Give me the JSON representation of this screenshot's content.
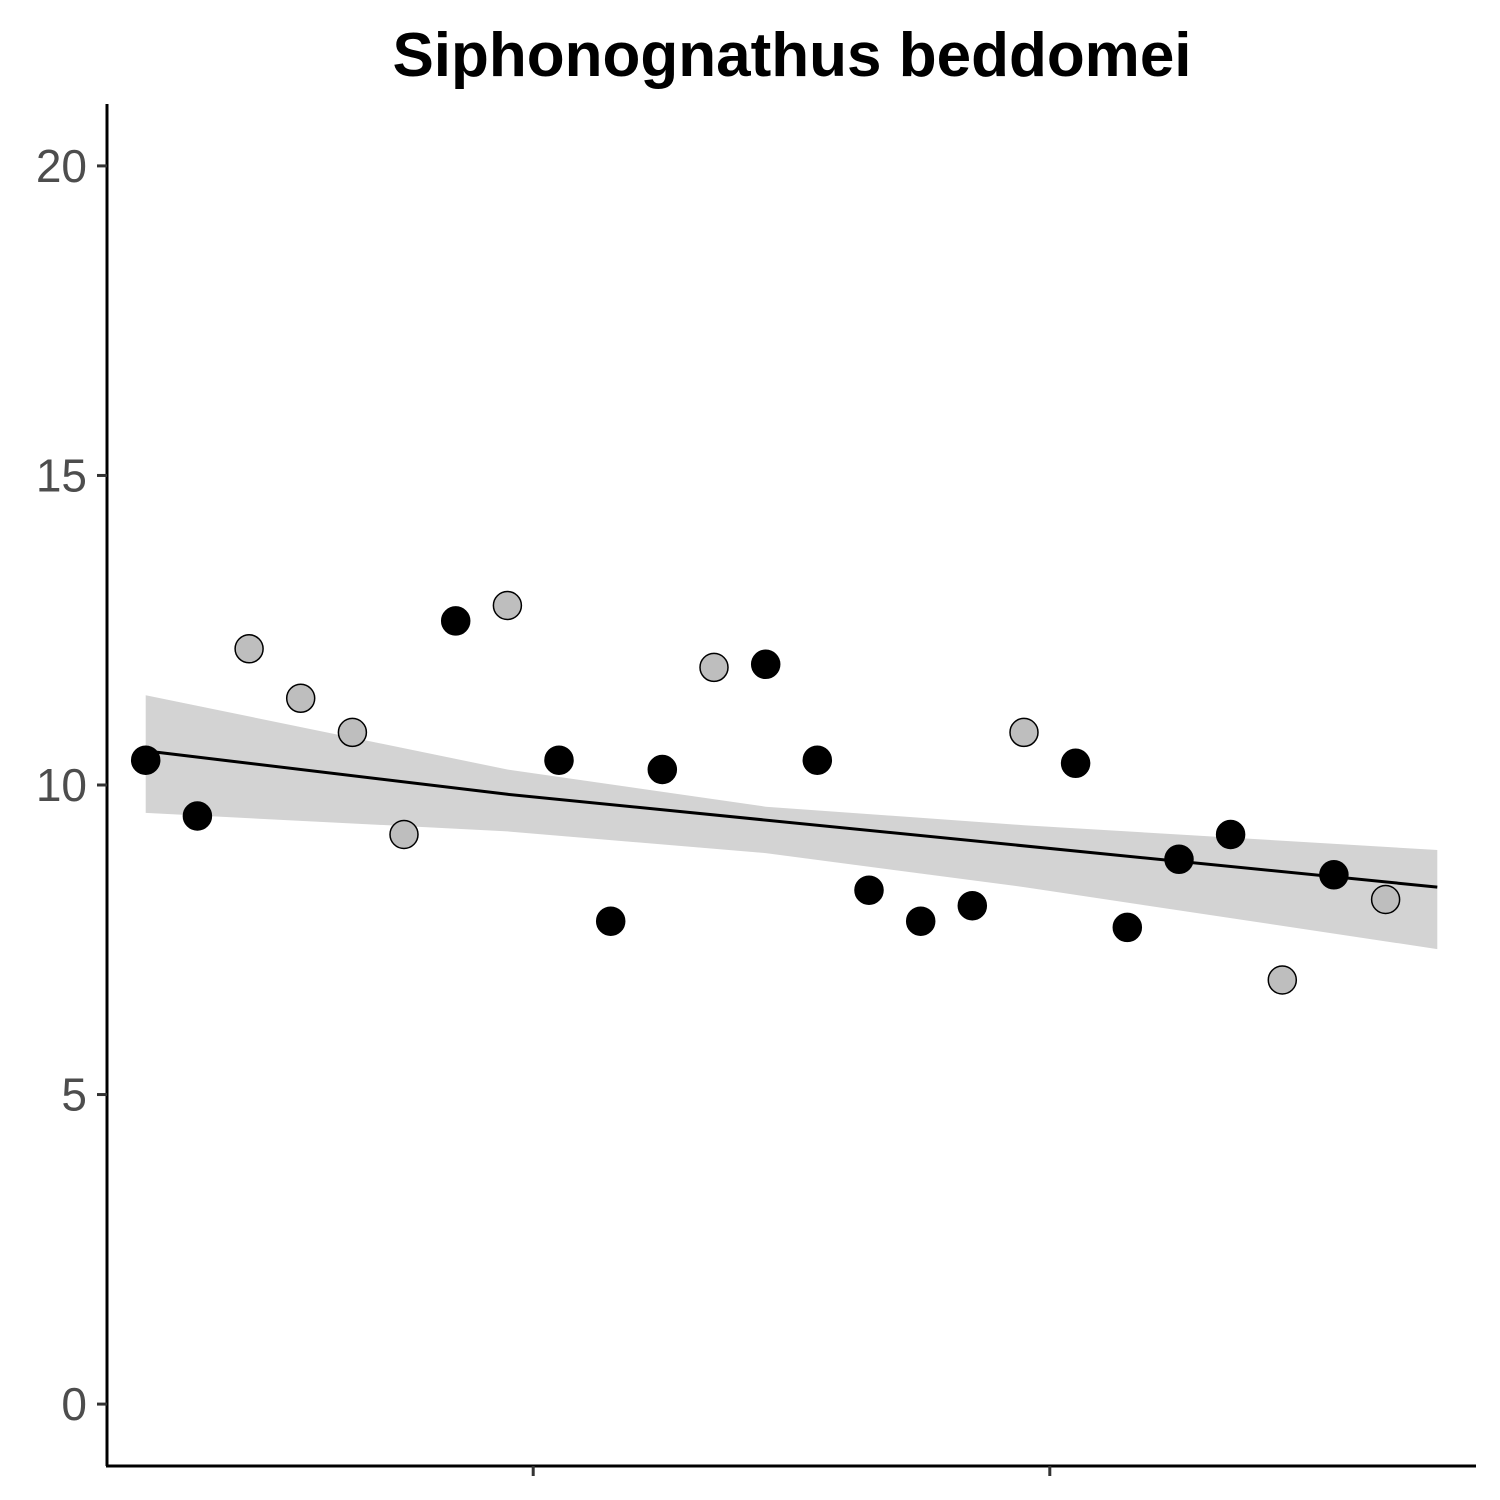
{
  "chart_data": {
    "type": "scatter",
    "title": "Siphonognathus beddomei",
    "xlabel": "",
    "ylabel": "",
    "ylim": [
      -1,
      21
    ],
    "yticks": [
      0,
      5,
      10,
      15,
      20
    ],
    "xlim": [
      0.25,
      26.75
    ],
    "xticks": [
      8.5,
      18.5
    ],
    "grid": false,
    "legend": "none",
    "colors": {
      "group_a": "#000000",
      "group_b": "#bebebe",
      "band": "#d3d3d3",
      "line": "#000000"
    },
    "points": [
      {
        "x": 1,
        "y": 10.4,
        "group": "group_a"
      },
      {
        "x": 2,
        "y": 9.5,
        "group": "group_a"
      },
      {
        "x": 3,
        "y": 12.2,
        "group": "group_b"
      },
      {
        "x": 4,
        "y": 11.4,
        "group": "group_b"
      },
      {
        "x": 5,
        "y": 10.85,
        "group": "group_b"
      },
      {
        "x": 6,
        "y": 9.2,
        "group": "group_b"
      },
      {
        "x": 7,
        "y": 12.65,
        "group": "group_a"
      },
      {
        "x": 8,
        "y": 12.9,
        "group": "group_b"
      },
      {
        "x": 9,
        "y": 10.4,
        "group": "group_a"
      },
      {
        "x": 10,
        "y": 7.8,
        "group": "group_a"
      },
      {
        "x": 11,
        "y": 10.25,
        "group": "group_a"
      },
      {
        "x": 12,
        "y": 11.9,
        "group": "group_b"
      },
      {
        "x": 13,
        "y": 11.95,
        "group": "group_a"
      },
      {
        "x": 14,
        "y": 10.4,
        "group": "group_a"
      },
      {
        "x": 15,
        "y": 8.3,
        "group": "group_a"
      },
      {
        "x": 16,
        "y": 7.8,
        "group": "group_a"
      },
      {
        "x": 17,
        "y": 8.05,
        "group": "group_a"
      },
      {
        "x": 18,
        "y": 10.85,
        "group": "group_b"
      },
      {
        "x": 19,
        "y": 10.35,
        "group": "group_a"
      },
      {
        "x": 20,
        "y": 7.7,
        "group": "group_a"
      },
      {
        "x": 21,
        "y": 8.8,
        "group": "group_a"
      },
      {
        "x": 22,
        "y": 9.2,
        "group": "group_a"
      },
      {
        "x": 23,
        "y": 6.85,
        "group": "group_b"
      },
      {
        "x": 24,
        "y": 8.55,
        "group": "group_a"
      },
      {
        "x": 25,
        "y": 8.15,
        "group": "group_b"
      }
    ],
    "trend": {
      "x": [
        1,
        8,
        26
      ],
      "y": [
        10.55,
        9.85,
        8.35
      ]
    },
    "confidence_band": {
      "x": [
        1,
        8,
        13,
        18,
        26
      ],
      "lower": [
        9.55,
        9.25,
        8.9,
        8.35,
        7.35
      ],
      "upper": [
        11.45,
        10.25,
        9.65,
        9.35,
        8.95
      ]
    }
  }
}
